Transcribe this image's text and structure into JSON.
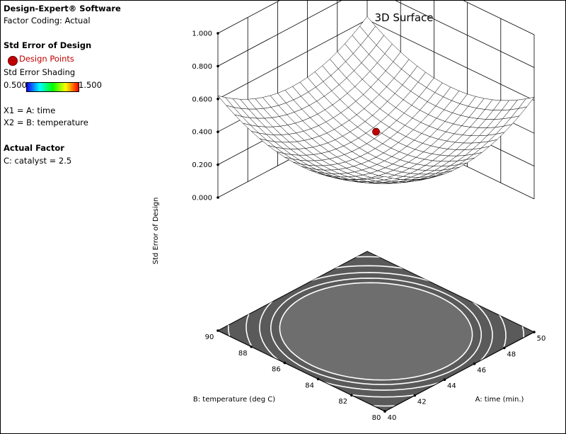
{
  "panel": {
    "software": "Design-Expert® Software",
    "coding": "Factor Coding: Actual",
    "response_title": "Std Error of Design",
    "design_points": "Design Points",
    "shading_title": "Std Error Shading",
    "shading_min": "0.500",
    "shading_max": "1.500",
    "x1": "X1 = A: time",
    "x2": "X2 = B: temperature",
    "actual_factor_title": "Actual Factor",
    "actual_factor": "C: catalyst = 2.5"
  },
  "colors": {
    "design_point": "#c00000",
    "floor": "#5a5a5a",
    "grid": "#000000"
  },
  "chart_data": {
    "type": "surface",
    "title": "3D Surface",
    "zlabel": "Std Error of Design",
    "xlabel": "A: time (min.)",
    "ylabel": "B: temperature (deg C)",
    "x_range": [
      40,
      50
    ],
    "y_range": [
      80,
      90
    ],
    "z_range": [
      0,
      1
    ],
    "x_ticks": [
      "40",
      "42",
      "44",
      "46",
      "48",
      "50"
    ],
    "y_ticks": [
      "80",
      "82",
      "84",
      "86",
      "88",
      "90"
    ],
    "z_ticks": [
      "0.000",
      "0.200",
      "0.400",
      "0.600",
      "0.800",
      "1.000"
    ],
    "surface": {
      "center_value": 0.25,
      "corner_value": 0.62
    },
    "design_point": {
      "x": 45,
      "y": 85,
      "z": 0.405
    }
  }
}
